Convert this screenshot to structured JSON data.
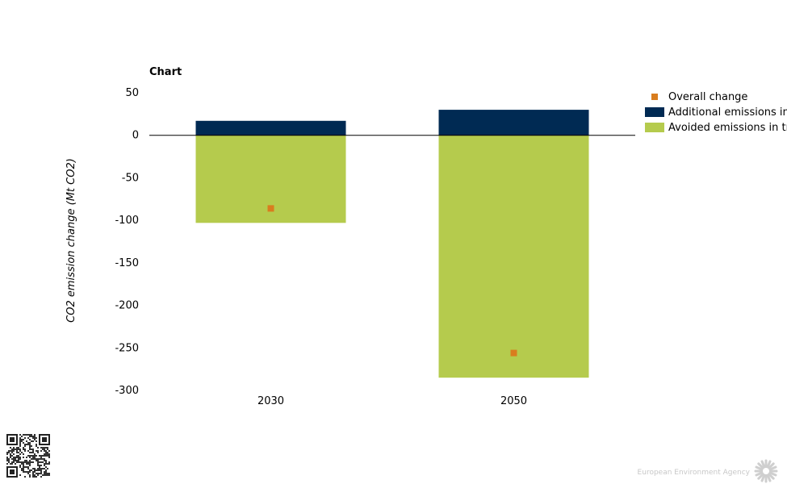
{
  "chart_data": {
    "type": "bar",
    "title": "Chart",
    "xlabel": "",
    "ylabel": "CO2 emission change (Mt CO2)",
    "categories": [
      "2030",
      "2050"
    ],
    "ylim": [
      -300,
      50
    ],
    "yticks": [
      50,
      0,
      -50,
      -100,
      -150,
      -200,
      -250,
      -300
    ],
    "stacked": true,
    "series": [
      {
        "name": "Additional emissions in power sector",
        "kind": "bar",
        "color": "#002a53",
        "values": [
          17,
          30
        ]
      },
      {
        "name": "Avoided emissions in transport sector",
        "kind": "bar",
        "color": "#b5cb4d",
        "values": [
          -103,
          -285
        ]
      },
      {
        "name": "Overall change",
        "kind": "marker",
        "color": "#d97d1e",
        "values": [
          -86,
          -256
        ]
      }
    ],
    "legend_position": "top-right",
    "grid": false
  },
  "footer": {
    "agency": "European Environment Agency",
    "qr_icon": "qr-code-icon",
    "logo_icon": "eea-sun-logo-icon"
  }
}
